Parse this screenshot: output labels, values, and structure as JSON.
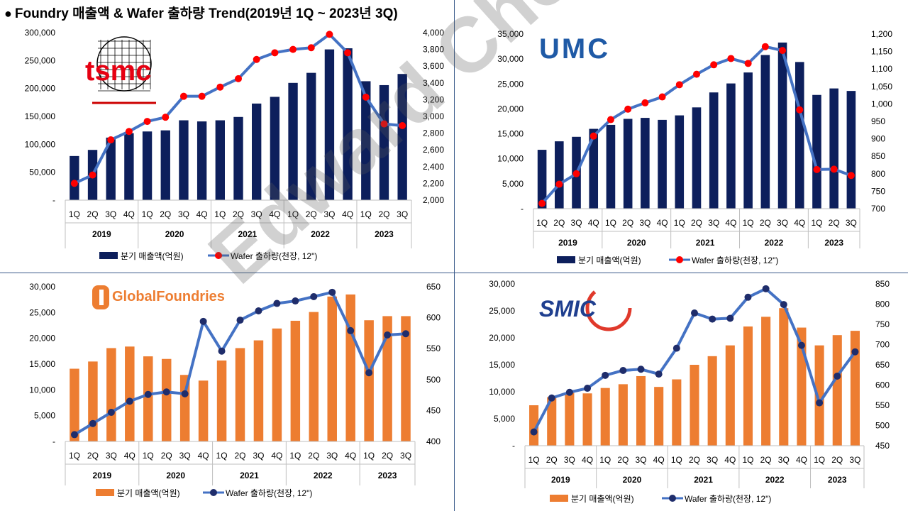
{
  "page_title": "Foundry 매출액 & Wafer 출하량 Trend(2019년 1Q ~ 2023년 3Q)",
  "bullet": "●",
  "watermark": "Edward Choi",
  "chart_data": [
    {
      "type": "bar",
      "company": "tsmc",
      "logo_text": "tsmc",
      "bar_color": "#0d1f5c",
      "line_color": "#4472c4",
      "marker_color": "#ff0000",
      "categories": [
        "1Q",
        "2Q",
        "3Q",
        "4Q",
        "1Q",
        "2Q",
        "3Q",
        "4Q",
        "1Q",
        "2Q",
        "3Q",
        "4Q",
        "1Q",
        "2Q",
        "3Q",
        "4Q",
        "1Q",
        "2Q",
        "3Q"
      ],
      "years": [
        "2019",
        "2020",
        "2021",
        "2022",
        "2023"
      ],
      "series": [
        {
          "name": "분기 매출액(억원)",
          "axis": "left",
          "values": [
            79000,
            90000,
            112000,
            120000,
            123000,
            125000,
            143000,
            141000,
            143000,
            149000,
            173000,
            185000,
            210000,
            228000,
            270000,
            272000,
            213000,
            206000,
            226000
          ]
        },
        {
          "name": "Wafer 출하량(천장, 12\")",
          "axis": "right",
          "values": [
            2200,
            2300,
            2720,
            2820,
            2940,
            2990,
            3240,
            3240,
            3350,
            3450,
            3680,
            3760,
            3800,
            3820,
            3980,
            3760,
            3230,
            2910,
            2890
          ]
        }
      ],
      "ylim_left": [
        0,
        300000
      ],
      "ylim_right": [
        2000,
        4000
      ],
      "left_ticks": [
        "-",
        "50,000",
        "100,000",
        "150,000",
        "200,000",
        "250,000",
        "300,000"
      ],
      "right_ticks": [
        "2,000",
        "2,200",
        "2,400",
        "2,600",
        "2,800",
        "3,000",
        "3,200",
        "3,400",
        "3,600",
        "3,800",
        "4,000"
      ]
    },
    {
      "type": "bar",
      "company": "UMC",
      "logo_text": "UMC",
      "bar_color": "#0d1f5c",
      "line_color": "#4472c4",
      "marker_color": "#ff0000",
      "categories": [
        "1Q",
        "2Q",
        "3Q",
        "4Q",
        "1Q",
        "2Q",
        "3Q",
        "4Q",
        "1Q",
        "2Q",
        "3Q",
        "4Q",
        "1Q",
        "2Q",
        "3Q",
        "4Q",
        "1Q",
        "2Q",
        "3Q"
      ],
      "years": [
        "2019",
        "2020",
        "2021",
        "2022",
        "2023"
      ],
      "series": [
        {
          "name": "분기 매출액(억원)",
          "axis": "left",
          "values": [
            11800,
            13500,
            14400,
            16000,
            16800,
            18000,
            18200,
            17800,
            18700,
            20300,
            23300,
            25100,
            27300,
            30800,
            33300,
            29400,
            22800,
            24100,
            23600
          ]
        },
        {
          "name": "Wafer 출하량(천장, 12\")",
          "axis": "right",
          "values": [
            715,
            770,
            800,
            908,
            955,
            985,
            1003,
            1020,
            1055,
            1085,
            1112,
            1130,
            1116,
            1164,
            1153,
            983,
            812,
            813,
            795
          ]
        }
      ],
      "ylim_left": [
        0,
        35000
      ],
      "ylim_right": [
        700,
        1200
      ],
      "left_ticks": [
        "-",
        "5,000",
        "10,000",
        "15,000",
        "20,000",
        "25,000",
        "30,000",
        "35,000"
      ],
      "right_ticks": [
        "700",
        "750",
        "800",
        "850",
        "900",
        "950",
        "1,000",
        "1,050",
        "1,100",
        "1,150",
        "1,200"
      ]
    },
    {
      "type": "bar",
      "company": "GlobalFoundries",
      "logo_text": "GlobalFoundries",
      "bar_color": "#ed7d31",
      "line_color": "#4472c4",
      "marker_color": "#1f2d6b",
      "categories": [
        "1Q",
        "2Q",
        "3Q",
        "4Q",
        "1Q",
        "2Q",
        "3Q",
        "4Q",
        "1Q",
        "2Q",
        "3Q",
        "4Q",
        "1Q",
        "2Q",
        "3Q",
        "4Q",
        "1Q",
        "2Q",
        "3Q"
      ],
      "years": [
        "2019",
        "2020",
        "2021",
        "2022",
        "2023"
      ],
      "series": [
        {
          "name": "분기 매출액(억원)",
          "axis": "left",
          "values": [
            14100,
            15500,
            18100,
            18400,
            16500,
            16000,
            12900,
            11800,
            15700,
            18100,
            19600,
            21900,
            23400,
            25100,
            28100,
            28500,
            23500,
            24300,
            24300
          ]
        },
        {
          "name": "Wafer 출하량(천장, 12\")",
          "axis": "right",
          "values": [
            411,
            429,
            447,
            465,
            476,
            480,
            477,
            594,
            546,
            596,
            611,
            623,
            627,
            634,
            641,
            579,
            511,
            572,
            574
          ]
        }
      ],
      "ylim_left": [
        0,
        30000
      ],
      "ylim_right": [
        400,
        650
      ],
      "left_ticks": [
        "-",
        "5,000",
        "10,000",
        "15,000",
        "20,000",
        "25,000",
        "30,000"
      ],
      "right_ticks": [
        "400",
        "450",
        "500",
        "550",
        "600",
        "650"
      ]
    },
    {
      "type": "bar",
      "company": "SMIC",
      "logo_text": "SMIC",
      "bar_color": "#ed7d31",
      "line_color": "#4472c4",
      "marker_color": "#1f2d6b",
      "categories": [
        "1Q",
        "2Q",
        "3Q",
        "4Q",
        "1Q",
        "2Q",
        "3Q",
        "4Q",
        "1Q",
        "2Q",
        "3Q",
        "4Q",
        "1Q",
        "2Q",
        "3Q",
        "4Q",
        "1Q",
        "2Q",
        "3Q"
      ],
      "years": [
        "2019",
        "2020",
        "2021",
        "2022",
        "2023"
      ],
      "series": [
        {
          "name": "분기 매출액(억원)",
          "axis": "left",
          "values": [
            7500,
            9000,
            9800,
            9700,
            10700,
            11400,
            12900,
            10900,
            12300,
            15000,
            16600,
            18600,
            22100,
            23900,
            25500,
            21900,
            18600,
            20500,
            21300
          ]
        },
        {
          "name": "Wafer 출하량(천장, 12\")",
          "axis": "right",
          "values": [
            484,
            568,
            582,
            592,
            624,
            636,
            639,
            627,
            691,
            778,
            763,
            765,
            817,
            838,
            799,
            698,
            556,
            622,
            682
          ]
        }
      ],
      "ylim_left": [
        0,
        30000
      ],
      "ylim_right": [
        450,
        850
      ],
      "left_ticks": [
        "-",
        "5,000",
        "10,000",
        "15,000",
        "20,000",
        "25,000",
        "30,000"
      ],
      "right_ticks": [
        "450",
        "500",
        "550",
        "600",
        "650",
        "700",
        "750",
        "800",
        "850"
      ]
    }
  ]
}
